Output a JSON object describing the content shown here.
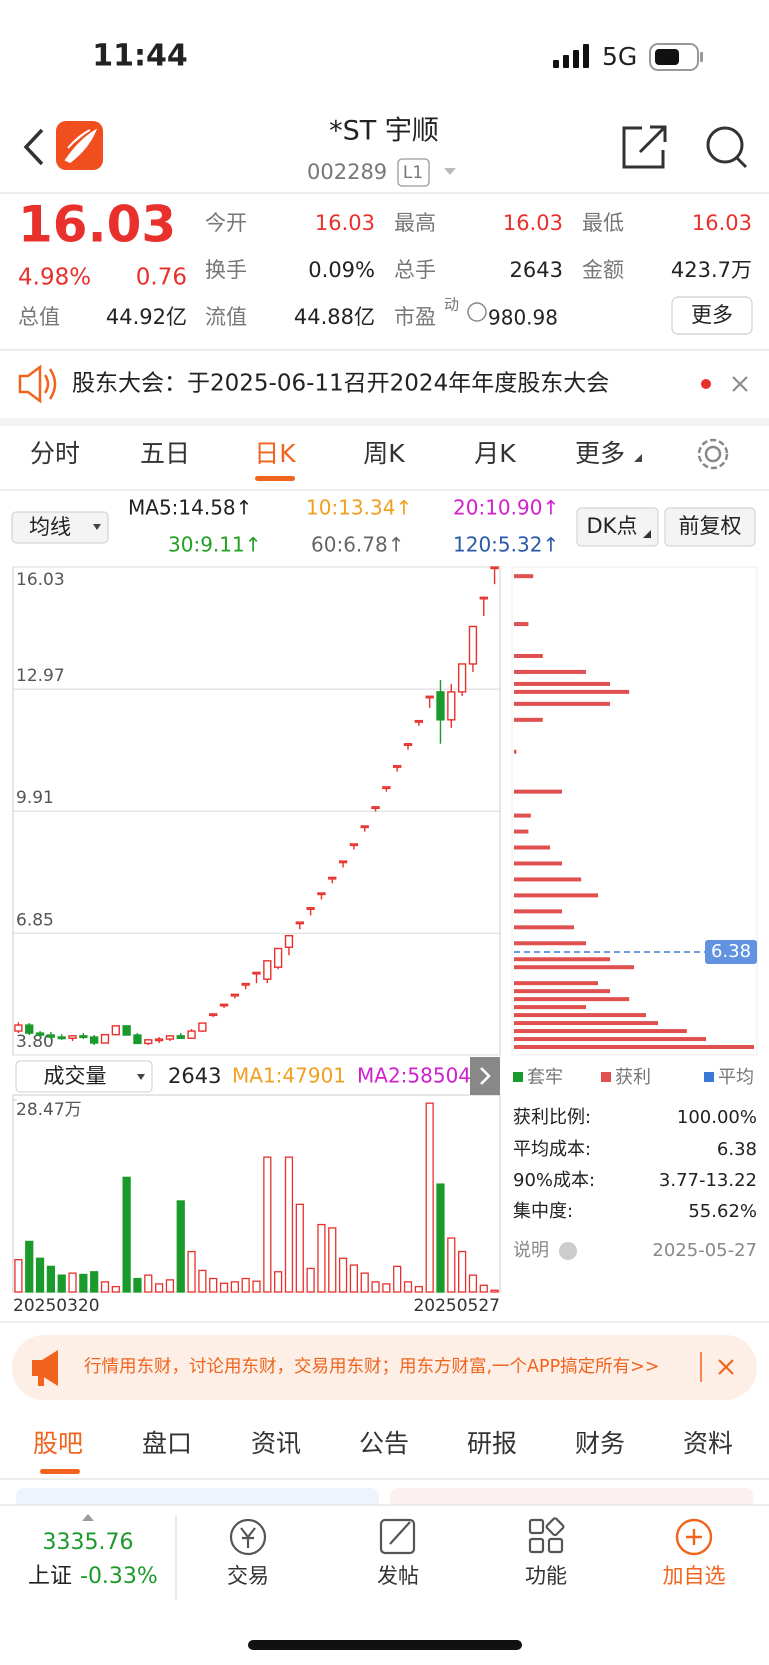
{
  "status": {
    "time": "11:44",
    "network": "5G"
  },
  "header": {
    "title": "*ST 宇顺",
    "code": "002289",
    "level": "L1"
  },
  "quote": {
    "price": "16.03",
    "change_pct": "4.98%",
    "change": "0.76",
    "fields": [
      [
        {
          "label": "今开",
          "value": "16.03"
        },
        {
          "label": "最高",
          "value": "16.03"
        },
        {
          "label": "最低",
          "value": "16.03"
        }
      ],
      [
        {
          "label": "换手",
          "value": "0.09%"
        },
        {
          "label": "总手",
          "value": "2643"
        },
        {
          "label": "金额",
          "value": "423.7万"
        }
      ]
    ],
    "total_cap": {
      "label": "总值",
      "value": "44.92亿"
    },
    "float_cap": {
      "label": "流值",
      "value": "44.88亿"
    },
    "pe": {
      "label": "市盈",
      "sup": "动",
      "value": "980.98"
    },
    "more": "更多"
  },
  "notice": "股东大会：于2025-06-11召开2024年年度股东大会",
  "tabs": {
    "items": [
      "分时",
      "五日",
      "日K",
      "周K",
      "月K",
      "更多"
    ],
    "active": 2
  },
  "ma_bar": {
    "selector": "均线",
    "items": [
      {
        "text": "MA5:14.58↑",
        "color": "#222222"
      },
      {
        "text": "10:13.34↑",
        "color": "#f0a020"
      },
      {
        "text": "20:10.90↑",
        "color": "#d020d0"
      },
      {
        "text": "30:9.11↑",
        "color": "#22a022"
      },
      {
        "text": "60:6.78↑",
        "color": "#666666"
      },
      {
        "text": "120:5.32↑",
        "color": "#2a5aa8"
      }
    ],
    "buttons": [
      "DK点",
      "前复权"
    ]
  },
  "volume_bar": {
    "selector": "成交量",
    "value": "2643",
    "items": [
      {
        "text": "MA1:47901",
        "color": "#f0a020"
      },
      {
        "text": "MA2:58504",
        "color": "#d020d0"
      }
    ]
  },
  "chart_data": [
    {
      "type": "candlestick",
      "ylim": [
        3.8,
        16.03
      ],
      "yticks": [
        16.03,
        12.97,
        9.91,
        6.85,
        {
          "value": 3.8,
          "label": "3.80"
        }
      ],
      "grid": true,
      "up_color": "#e8302c",
      "down_color": "#1a9a2a",
      "ohlc": [
        [
          4.4,
          4.62,
          4.35,
          4.55
        ],
        [
          4.55,
          4.6,
          4.3,
          4.35
        ],
        [
          4.35,
          4.4,
          4.25,
          4.3
        ],
        [
          4.3,
          4.38,
          4.2,
          4.25
        ],
        [
          4.25,
          4.32,
          4.18,
          4.22
        ],
        [
          4.22,
          4.3,
          4.15,
          4.28
        ],
        [
          4.28,
          4.35,
          4.2,
          4.25
        ],
        [
          4.25,
          4.3,
          4.05,
          4.1
        ],
        [
          4.1,
          4.31,
          4.1,
          4.31
        ],
        [
          4.31,
          4.53,
          4.31,
          4.53
        ],
        [
          4.53,
          4.53,
          4.3,
          4.3
        ],
        [
          4.3,
          4.35,
          4.09,
          4.09
        ],
        [
          4.09,
          4.2,
          4.05,
          4.18
        ],
        [
          4.18,
          4.25,
          4.1,
          4.2
        ],
        [
          4.2,
          4.3,
          4.15,
          4.28
        ],
        [
          4.28,
          4.35,
          4.2,
          4.22
        ],
        [
          4.22,
          4.45,
          4.2,
          4.4
        ],
        [
          4.4,
          4.6,
          4.38,
          4.6
        ],
        [
          4.83,
          4.83,
          4.75,
          4.83
        ],
        [
          5.07,
          5.07,
          4.98,
          5.07
        ],
        [
          5.32,
          5.32,
          5.22,
          5.32
        ],
        [
          5.59,
          5.59,
          5.45,
          5.59
        ],
        [
          5.87,
          5.87,
          5.6,
          5.87
        ],
        [
          5.7,
          6.16,
          5.6,
          6.16
        ],
        [
          6.0,
          6.47,
          5.95,
          6.47
        ],
        [
          6.5,
          6.79,
          6.3,
          6.79
        ],
        [
          7.13,
          7.13,
          6.95,
          7.13
        ],
        [
          7.49,
          7.49,
          7.3,
          7.49
        ],
        [
          7.86,
          7.86,
          7.7,
          7.86
        ],
        [
          8.25,
          8.25,
          8.1,
          8.25
        ],
        [
          8.66,
          8.66,
          8.5,
          8.66
        ],
        [
          9.09,
          9.09,
          8.95,
          9.09
        ],
        [
          9.54,
          9.54,
          9.4,
          9.54
        ],
        [
          10.02,
          10.02,
          9.9,
          10.02
        ],
        [
          10.52,
          10.52,
          10.4,
          10.52
        ],
        [
          11.05,
          11.05,
          10.9,
          11.05
        ],
        [
          11.6,
          11.6,
          11.45,
          11.6
        ],
        [
          12.18,
          12.18,
          12.05,
          12.18
        ],
        [
          12.79,
          12.79,
          12.5,
          12.79
        ],
        [
          12.9,
          13.2,
          11.6,
          12.2
        ],
        [
          12.2,
          13.1,
          12.0,
          12.9
        ],
        [
          12.9,
          13.6,
          12.8,
          13.6
        ],
        [
          13.6,
          14.54,
          13.4,
          14.54
        ],
        [
          15.27,
          15.27,
          14.8,
          15.27
        ],
        [
          16.03,
          16.03,
          15.6,
          16.03
        ]
      ]
    },
    {
      "type": "bar",
      "ylim": [
        0,
        28.47
      ],
      "yticks": [
        {
          "value": 28.47,
          "label": "28.47万"
        }
      ],
      "x_labels": [
        "20250320",
        "20250527"
      ],
      "values": [
        4.8,
        7.5,
        5.0,
        3.8,
        2.5,
        2.8,
        2.6,
        3.0,
        1.5,
        0.8,
        17.0,
        2.0,
        2.5,
        1.2,
        1.8,
        13.5,
        6.0,
        3.2,
        2.0,
        1.3,
        1.5,
        2.0,
        1.6,
        20.0,
        3.0,
        20.0,
        13.0,
        3.5,
        10.0,
        9.5,
        5.0,
        4.0,
        2.8,
        1.5,
        1.2,
        3.8,
        1.5,
        0.8,
        28.0,
        16.0,
        8.0,
        6.0,
        2.5,
        1.0,
        0.26
      ]
    },
    {
      "type": "hbar",
      "ylim": [
        3.8,
        16.03
      ],
      "xlim": [
        0,
        100
      ],
      "color": "#e05050",
      "prices": [
        4.0,
        4.2,
        4.4,
        4.6,
        4.8,
        5.0,
        5.2,
        5.4,
        5.6,
        6.0,
        6.2,
        6.6,
        7.0,
        7.4,
        7.8,
        8.2,
        8.6,
        9.0,
        9.4,
        9.8,
        10.4,
        11.4,
        12.2,
        12.6,
        12.9,
        13.1,
        13.4,
        13.8,
        14.6,
        15.8
      ],
      "values": [
        100,
        80,
        72,
        60,
        55,
        30,
        48,
        40,
        35,
        50,
        40,
        30,
        25,
        20,
        35,
        28,
        20,
        15,
        6,
        7,
        20,
        1,
        12,
        40,
        48,
        40,
        30,
        12,
        6,
        8
      ],
      "average": 6.38,
      "average_color": "#3a78d8"
    }
  ],
  "chip_panel": {
    "legend": [
      "套牢",
      "获利",
      "平均"
    ],
    "stats": [
      [
        "获利比例:",
        "100.00%"
      ],
      [
        "平均成本:",
        "6.38"
      ],
      [
        "90%成本:",
        "3.77-13.22"
      ],
      [
        "集中度:",
        "55.62%"
      ],
      [
        "说明",
        "2025-05-27"
      ]
    ]
  },
  "ad": "行情用东财，讨论用东财，交易用东财；用东方财富,一个APP搞定所有>>",
  "bottom_tabs": {
    "items": [
      "股吧",
      "盘口",
      "资讯",
      "公告",
      "研报",
      "财务",
      "资料"
    ],
    "active": 0
  },
  "nav": {
    "index": {
      "value": "3335.76",
      "name": "上证",
      "change": "-0.33%"
    },
    "items": [
      "交易",
      "发帖",
      "功能",
      "加自选"
    ]
  }
}
